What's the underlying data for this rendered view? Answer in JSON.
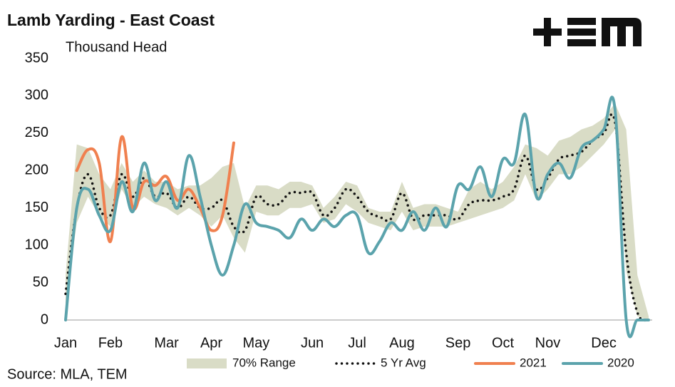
{
  "chart_data": {
    "type": "line",
    "title": "Lamb Yarding - East Coast",
    "y_label": "Thousand Head",
    "source": "Source: MLA, TEM",
    "categories": [
      "Jan",
      null,
      null,
      null,
      "Feb",
      null,
      null,
      null,
      null,
      "Mar",
      null,
      null,
      null,
      "Apr",
      null,
      null,
      null,
      "May",
      null,
      null,
      null,
      null,
      "Jun",
      null,
      null,
      null,
      "Jul",
      null,
      null,
      null,
      "Aug",
      null,
      null,
      null,
      null,
      "Sep",
      null,
      null,
      null,
      "Oct",
      null,
      null,
      null,
      "Nov",
      null,
      null,
      null,
      null,
      "Dec",
      null,
      null,
      null,
      null
    ],
    "ylim": [
      0,
      350
    ],
    "yticks": [
      0,
      50,
      100,
      150,
      200,
      250,
      300,
      350
    ],
    "grid": false,
    "legend": "bottom",
    "series": [
      {
        "name": "70% Range",
        "kind": "range",
        "color": "#d9dcc6",
        "low": [
          20,
          130,
          165,
          140,
          125,
          175,
          150,
          165,
          155,
          150,
          140,
          150,
          140,
          125,
          140,
          110,
          90,
          145,
          140,
          140,
          150,
          150,
          155,
          130,
          135,
          155,
          145,
          130,
          125,
          120,
          145,
          120,
          125,
          125,
          125,
          130,
          135,
          140,
          145,
          150,
          160,
          195,
          160,
          175,
          195,
          195,
          205,
          220,
          235,
          255,
          65,
          5,
          0
        ],
        "high": [
          60,
          235,
          230,
          195,
          175,
          210,
          185,
          200,
          185,
          185,
          175,
          180,
          180,
          190,
          205,
          210,
          150,
          180,
          180,
          175,
          185,
          185,
          180,
          150,
          165,
          185,
          180,
          150,
          145,
          145,
          185,
          150,
          155,
          155,
          150,
          145,
          175,
          185,
          175,
          185,
          205,
          235,
          230,
          220,
          240,
          245,
          255,
          260,
          270,
          290,
          255,
          60,
          5
        ]
      },
      {
        "name": "5 Yr Avg",
        "kind": "dotted",
        "color": "#111111",
        "values": [
          35,
          150,
          195,
          150,
          140,
          195,
          165,
          190,
          165,
          170,
          150,
          165,
          150,
          150,
          160,
          125,
          120,
          165,
          155,
          155,
          170,
          170,
          170,
          140,
          150,
          175,
          165,
          145,
          138,
          135,
          170,
          135,
          140,
          140,
          140,
          135,
          155,
          160,
          160,
          165,
          175,
          220,
          175,
          190,
          215,
          220,
          225,
          240,
          250,
          265,
          90,
          10,
          0
        ]
      },
      {
        "name": "2021",
        "kind": "solid",
        "color": "#f0804f",
        "values": [
          null,
          200,
          228,
          210,
          105,
          245,
          150,
          185,
          180,
          192,
          160,
          175,
          150,
          120,
          140,
          237,
          null,
          null,
          null,
          null,
          null,
          null,
          null,
          null,
          null,
          null,
          null,
          null,
          null,
          null,
          null,
          null,
          null,
          null,
          null,
          null,
          null,
          null,
          null,
          null,
          null,
          null,
          null,
          null,
          null,
          null,
          null,
          null,
          null,
          null,
          null,
          null,
          null
        ]
      },
      {
        "name": "2020",
        "kind": "solid",
        "color": "#5ba3ac",
        "values": [
          0,
          150,
          175,
          140,
          120,
          185,
          145,
          210,
          160,
          185,
          150,
          220,
          165,
          100,
          60,
          100,
          155,
          130,
          125,
          120,
          110,
          135,
          120,
          135,
          125,
          140,
          140,
          90,
          105,
          130,
          120,
          145,
          120,
          150,
          125,
          180,
          175,
          205,
          165,
          215,
          210,
          275,
          165,
          195,
          210,
          190,
          230,
          240,
          255,
          282,
          0,
          0,
          0
        ]
      }
    ]
  }
}
